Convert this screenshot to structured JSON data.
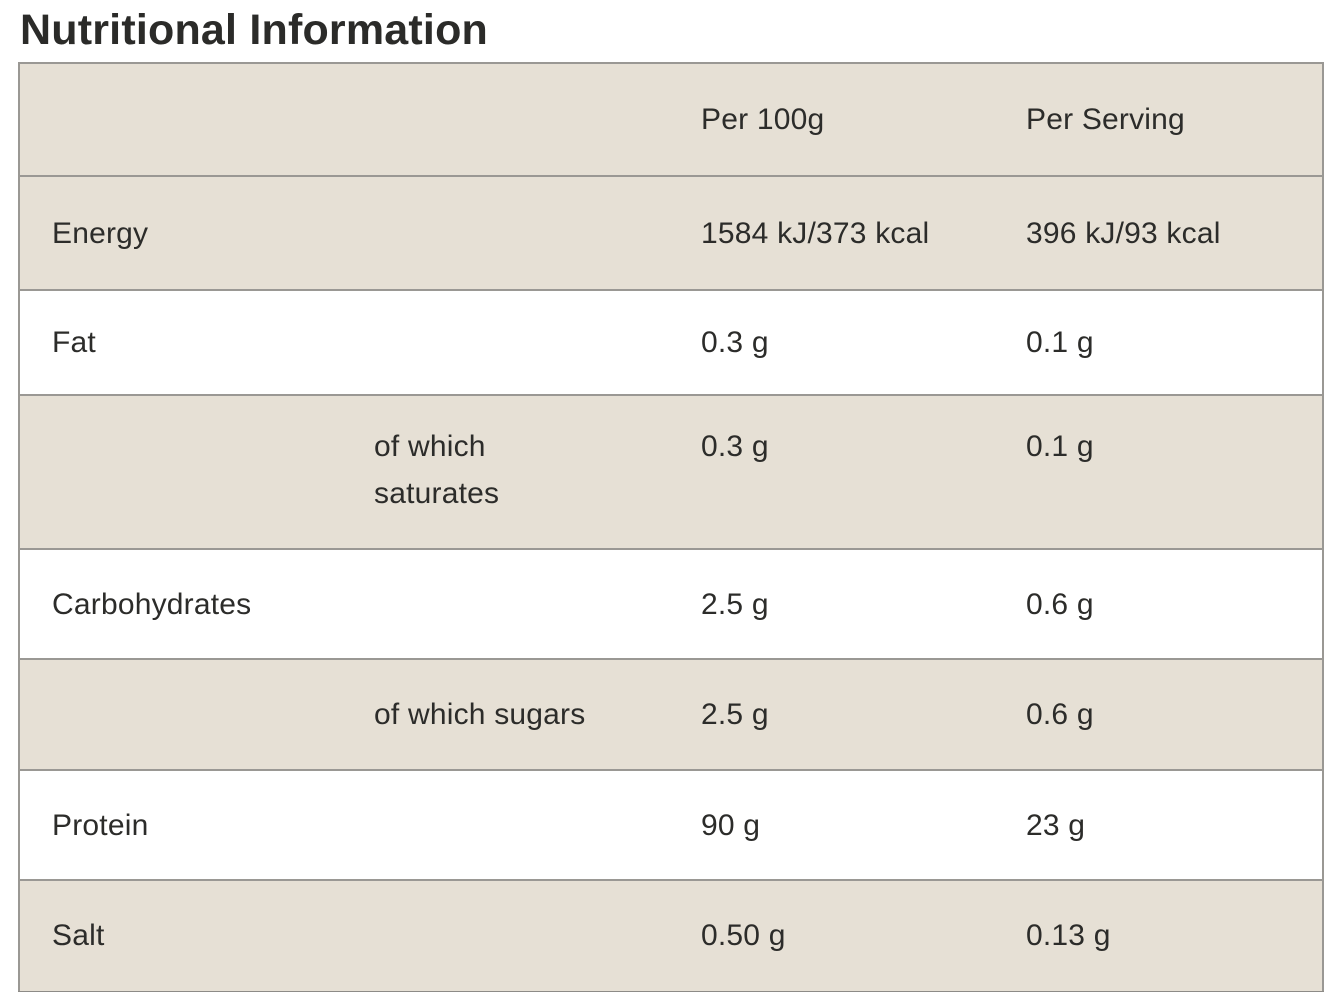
{
  "page": {
    "title": "Nutritional Information"
  },
  "table": {
    "columns": [
      "",
      "Per 100g",
      "Per Serving"
    ],
    "rows": [
      {
        "label": "Energy",
        "indented": false,
        "per_100g": "1584 kJ/373 kcal",
        "per_serving": "396 kJ/93 kcal"
      },
      {
        "label": "Fat",
        "indented": false,
        "per_100g": "0.3 g",
        "per_serving": "0.1 g"
      },
      {
        "label": "of which saturates",
        "indented": true,
        "per_100g": "0.3 g",
        "per_serving": "0.1 g"
      },
      {
        "label": "Carbohydrates",
        "indented": false,
        "per_100g": "2.5 g",
        "per_serving": "0.6 g"
      },
      {
        "label": "of which sugars",
        "indented": true,
        "per_100g": "2.5 g",
        "per_serving": "0.6 g"
      },
      {
        "label": "Protein",
        "indented": false,
        "per_100g": "90 g",
        "per_serving": "23 g"
      },
      {
        "label": "Salt",
        "indented": false,
        "per_100g": "0.50 g",
        "per_serving": "0.13 g"
      }
    ]
  },
  "colors": {
    "row_shaded": "#e6e0d5",
    "row_plain": "#ffffff",
    "border": "#9a9894",
    "text": "#2c2c2a"
  }
}
